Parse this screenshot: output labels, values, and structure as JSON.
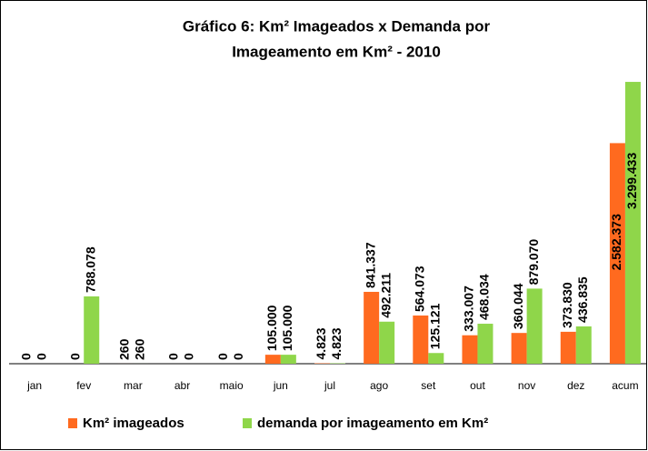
{
  "chart_data": {
    "type": "bar",
    "title": [
      "Gráfico 6: Km² Imageados x  Demanda por",
      "Imageamento em Km² - 2010"
    ],
    "categories": [
      "jan",
      "fev",
      "mar",
      "abr",
      "maio",
      "jun",
      "jul",
      "ago",
      "set",
      "out",
      "nov",
      "dez",
      "acum"
    ],
    "series": [
      {
        "name": "Km² imageados",
        "color": "#ff6a1f",
        "values": [
          0,
          0,
          260,
          0,
          0,
          105000,
          4823,
          841337,
          564073,
          333007,
          360044,
          373830,
          2582373
        ],
        "value_labels": [
          "0",
          "0",
          "260",
          "0",
          "0",
          "105.000",
          "4.823",
          "841.337",
          "564.073",
          "333.007",
          "360.044",
          "373.830",
          "2.582.373"
        ]
      },
      {
        "name": "demanda por imageamento em Km²",
        "color": "#8fd64a",
        "values": [
          0,
          788078,
          260,
          0,
          0,
          105000,
          4823,
          492211,
          125121,
          468034,
          879070,
          436835,
          3299433
        ],
        "value_labels": [
          "0",
          "788.078",
          "260",
          "0",
          "0",
          "105.000",
          "4.823",
          "492.211",
          "125.121",
          "468.034",
          "879.070",
          "436.835",
          "3.299.433"
        ]
      }
    ],
    "ylim": [
      0,
      3300000
    ],
    "legend": "bottom"
  }
}
